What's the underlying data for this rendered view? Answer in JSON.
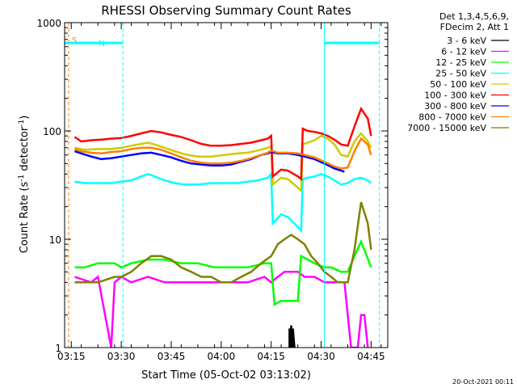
{
  "chart_data": {
    "type": "line",
    "title": "RHESSI Observing Summary Count Rates",
    "xlabel": "Start Time (05-Oct-02 03:13:02)",
    "ylabel_main": "Count Rate (s",
    "ylabel_sup1": "-1",
    "ylabel_mid": " detector",
    "ylabel_sup2": "-1",
    "ylabel_end": ")",
    "x_range_min": [
      0,
      97
    ],
    "y_range": [
      1,
      1000
    ],
    "y_scale": "log",
    "x_ticks": [
      {
        "min": 2,
        "label": "03:15"
      },
      {
        "min": 17,
        "label": "03:30"
      },
      {
        "min": 32,
        "label": "03:45"
      },
      {
        "min": 47,
        "label": "04:00"
      },
      {
        "min": 62,
        "label": "04:15"
      },
      {
        "min": 77,
        "label": "04:30"
      },
      {
        "min": 92,
        "label": "04:45"
      }
    ],
    "y_ticks": [
      {
        "value": 1,
        "label": "1"
      },
      {
        "value": 10,
        "label": "10"
      },
      {
        "value": 100,
        "label": "100"
      },
      {
        "value": 1000,
        "label": "1000"
      }
    ],
    "legend": {
      "header": [
        "Det 1,3,4,5,6,9,",
        "FDecim 2, Att 1"
      ],
      "position": "right"
    },
    "series": [
      {
        "name": "3 - 6 keV",
        "color": "#000000",
        "points": [
          [
            67.5,
            1
          ],
          [
            67.5,
            1.5
          ],
          [
            68,
            1
          ],
          [
            68,
            1.6
          ],
          [
            68.5,
            1
          ],
          [
            68.5,
            1.5
          ],
          [
            69,
            1
          ]
        ]
      },
      {
        "name": "6 - 12 keV",
        "color": "#ff00ff",
        "points": [
          [
            3,
            4.5
          ],
          [
            8,
            4
          ],
          [
            10,
            4.5
          ],
          [
            14,
            1
          ],
          [
            15,
            4
          ],
          [
            17,
            4.5
          ],
          [
            20,
            4
          ],
          [
            25,
            4.5
          ],
          [
            30,
            4
          ],
          [
            35,
            4
          ],
          [
            40,
            4
          ],
          [
            45,
            4
          ],
          [
            50,
            4
          ],
          [
            55,
            4
          ],
          [
            60,
            4.5
          ],
          [
            62,
            4
          ],
          [
            64,
            4.5
          ],
          [
            66,
            5
          ],
          [
            68,
            5
          ],
          [
            70,
            5
          ],
          [
            72,
            4.5
          ],
          [
            75,
            4.5
          ],
          [
            78,
            4
          ],
          [
            80,
            4
          ],
          [
            82,
            4
          ],
          [
            84,
            4
          ],
          [
            86,
            1
          ],
          [
            88,
            1
          ],
          [
            89,
            2
          ],
          [
            90,
            2
          ],
          [
            91,
            1
          ]
        ]
      },
      {
        "name": "12 - 25 keV",
        "color": "#00ff00",
        "points": [
          [
            3,
            5.5
          ],
          [
            6,
            5.5
          ],
          [
            10,
            6
          ],
          [
            15,
            6
          ],
          [
            17,
            5.5
          ],
          [
            20,
            6
          ],
          [
            25,
            6.5
          ],
          [
            30,
            6.5
          ],
          [
            35,
            6
          ],
          [
            40,
            6
          ],
          [
            45,
            5.5
          ],
          [
            50,
            5.5
          ],
          [
            55,
            5.5
          ],
          [
            60,
            6
          ],
          [
            62,
            6
          ],
          [
            63,
            2.5
          ],
          [
            65,
            2.7
          ],
          [
            68,
            2.7
          ],
          [
            70,
            2.7
          ],
          [
            71,
            7
          ],
          [
            73,
            6.5
          ],
          [
            75,
            6
          ],
          [
            78,
            5.5
          ],
          [
            80,
            5.5
          ],
          [
            83,
            5
          ],
          [
            85,
            5
          ],
          [
            87,
            7
          ],
          [
            89,
            9.5
          ],
          [
            90,
            8
          ],
          [
            92,
            5.5
          ]
        ]
      },
      {
        "name": "25 - 50 keV",
        "color": "#00ffff",
        "points": [
          [
            3,
            34
          ],
          [
            6,
            33
          ],
          [
            10,
            33
          ],
          [
            14,
            33
          ],
          [
            17,
            34
          ],
          [
            20,
            35
          ],
          [
            23,
            38
          ],
          [
            25,
            40
          ],
          [
            27,
            38
          ],
          [
            30,
            35
          ],
          [
            33,
            33
          ],
          [
            36,
            32
          ],
          [
            40,
            32
          ],
          [
            44,
            33
          ],
          [
            48,
            33
          ],
          [
            52,
            33
          ],
          [
            55,
            34
          ],
          [
            58,
            35
          ],
          [
            61,
            37
          ],
          [
            62,
            40
          ],
          [
            62.5,
            14
          ],
          [
            65,
            17
          ],
          [
            67,
            16
          ],
          [
            70,
            13
          ],
          [
            71,
            12
          ],
          [
            71.5,
            36
          ],
          [
            73,
            37
          ],
          [
            75,
            38
          ],
          [
            77,
            40
          ],
          [
            79,
            38
          ],
          [
            81,
            35
          ],
          [
            83,
            32
          ],
          [
            85,
            33
          ],
          [
            87,
            36
          ],
          [
            89,
            37
          ],
          [
            91,
            35
          ],
          [
            92,
            33
          ]
        ]
      },
      {
        "name": "50 - 100 keV",
        "color": "#cccc00",
        "points": [
          [
            3,
            70
          ],
          [
            6,
            67
          ],
          [
            10,
            68
          ],
          [
            14,
            68
          ],
          [
            17,
            70
          ],
          [
            20,
            73
          ],
          [
            23,
            76
          ],
          [
            25,
            78
          ],
          [
            27,
            75
          ],
          [
            30,
            70
          ],
          [
            33,
            65
          ],
          [
            36,
            61
          ],
          [
            40,
            58
          ],
          [
            44,
            58
          ],
          [
            48,
            60
          ],
          [
            52,
            62
          ],
          [
            55,
            63
          ],
          [
            58,
            66
          ],
          [
            61,
            70
          ],
          [
            62,
            72
          ],
          [
            62.5,
            32
          ],
          [
            65,
            37
          ],
          [
            67,
            36
          ],
          [
            70,
            30
          ],
          [
            71,
            28
          ],
          [
            71.5,
            75
          ],
          [
            73,
            78
          ],
          [
            75,
            82
          ],
          [
            77,
            90
          ],
          [
            79,
            85
          ],
          [
            81,
            75
          ],
          [
            83,
            60
          ],
          [
            85,
            58
          ],
          [
            87,
            80
          ],
          [
            89,
            95
          ],
          [
            91,
            80
          ],
          [
            92,
            70
          ]
        ]
      },
      {
        "name": "100 - 300 keV",
        "color": "#ff0000",
        "points": [
          [
            3,
            88
          ],
          [
            5,
            80
          ],
          [
            8,
            82
          ],
          [
            11,
            83
          ],
          [
            14,
            85
          ],
          [
            17,
            86
          ],
          [
            20,
            90
          ],
          [
            23,
            95
          ],
          [
            26,
            100
          ],
          [
            29,
            97
          ],
          [
            32,
            92
          ],
          [
            35,
            88
          ],
          [
            38,
            82
          ],
          [
            41,
            76
          ],
          [
            44,
            73
          ],
          [
            47,
            73
          ],
          [
            50,
            74
          ],
          [
            53,
            76
          ],
          [
            56,
            78
          ],
          [
            59,
            82
          ],
          [
            61,
            85
          ],
          [
            62,
            90
          ],
          [
            62.5,
            38
          ],
          [
            65,
            44
          ],
          [
            67,
            43
          ],
          [
            70,
            38
          ],
          [
            71,
            36
          ],
          [
            71.5,
            105
          ],
          [
            73,
            100
          ],
          [
            75,
            98
          ],
          [
            77,
            95
          ],
          [
            79,
            90
          ],
          [
            81,
            83
          ],
          [
            83,
            75
          ],
          [
            85,
            73
          ],
          [
            87,
            110
          ],
          [
            89,
            160
          ],
          [
            91,
            130
          ],
          [
            92,
            90
          ]
        ]
      },
      {
        "name": "300 - 800 keV",
        "color": "#0000ff",
        "points": [
          [
            3,
            65
          ],
          [
            5,
            62
          ],
          [
            8,
            58
          ],
          [
            11,
            55
          ],
          [
            14,
            56
          ],
          [
            17,
            58
          ],
          [
            20,
            60
          ],
          [
            23,
            62
          ],
          [
            26,
            63
          ],
          [
            29,
            60
          ],
          [
            32,
            57
          ],
          [
            35,
            53
          ],
          [
            38,
            50
          ],
          [
            41,
            49
          ],
          [
            44,
            48
          ],
          [
            47,
            48
          ],
          [
            50,
            49
          ],
          [
            53,
            52
          ],
          [
            56,
            55
          ],
          [
            59,
            60
          ],
          [
            61,
            62
          ],
          [
            62,
            64
          ],
          [
            64,
            62
          ],
          [
            67,
            62
          ],
          [
            70,
            60
          ],
          [
            72,
            58
          ],
          [
            75,
            55
          ],
          [
            78,
            50
          ],
          [
            81,
            45
          ],
          [
            83,
            43
          ],
          [
            84,
            42
          ]
        ]
      },
      {
        "name": "800 - 7000 keV",
        "color": "#ff8000",
        "points": [
          [
            3,
            68
          ],
          [
            5,
            65
          ],
          [
            8,
            63
          ],
          [
            11,
            62
          ],
          [
            14,
            64
          ],
          [
            17,
            65
          ],
          [
            20,
            68
          ],
          [
            23,
            70
          ],
          [
            26,
            70
          ],
          [
            29,
            67
          ],
          [
            32,
            62
          ],
          [
            35,
            57
          ],
          [
            38,
            53
          ],
          [
            41,
            51
          ],
          [
            44,
            50
          ],
          [
            47,
            50
          ],
          [
            50,
            51
          ],
          [
            53,
            53
          ],
          [
            56,
            56
          ],
          [
            59,
            60
          ],
          [
            61,
            63
          ],
          [
            62,
            66
          ],
          [
            64,
            63
          ],
          [
            67,
            63
          ],
          [
            70,
            62
          ],
          [
            72,
            60
          ],
          [
            75,
            57
          ],
          [
            78,
            52
          ],
          [
            81,
            47
          ],
          [
            83,
            45
          ],
          [
            85,
            46
          ],
          [
            87,
            65
          ],
          [
            89,
            85
          ],
          [
            91,
            75
          ],
          [
            92,
            60
          ]
        ]
      },
      {
        "name": "7000 - 15000 keV",
        "color": "#808000",
        "points": [
          [
            3,
            4
          ],
          [
            6,
            4
          ],
          [
            10,
            4
          ],
          [
            15,
            4.5
          ],
          [
            17,
            4.5
          ],
          [
            20,
            5
          ],
          [
            23,
            6
          ],
          [
            26,
            7
          ],
          [
            29,
            7
          ],
          [
            32,
            6.5
          ],
          [
            35,
            5.5
          ],
          [
            38,
            5
          ],
          [
            41,
            4.5
          ],
          [
            44,
            4.5
          ],
          [
            47,
            4
          ],
          [
            50,
            4
          ],
          [
            53,
            4.5
          ],
          [
            56,
            5
          ],
          [
            59,
            6
          ],
          [
            62,
            7
          ],
          [
            64,
            9
          ],
          [
            66,
            10
          ],
          [
            68,
            11
          ],
          [
            70,
            10
          ],
          [
            72,
            9
          ],
          [
            74,
            7
          ],
          [
            76,
            6
          ],
          [
            78,
            5
          ],
          [
            80,
            4.5
          ],
          [
            82,
            4
          ],
          [
            84,
            4
          ],
          [
            85,
            4
          ],
          [
            87,
            8
          ],
          [
            89,
            22
          ],
          [
            91,
            14
          ],
          [
            92,
            8
          ]
        ]
      }
    ],
    "vlines": [
      {
        "min": 0,
        "color": "#00ffff",
        "dash": false
      },
      {
        "min": 1.2,
        "color": "#ff8000",
        "dash": true
      },
      {
        "min": 17.5,
        "color": "#00ffff",
        "dash": true
      },
      {
        "min": 78,
        "color": "#00ffff",
        "dash": false
      },
      {
        "min": 94.5,
        "color": "#00ffff",
        "dash": true
      }
    ],
    "flags": [
      {
        "label": "S",
        "color": "#ff8000",
        "x1": 1.2,
        "x2": 1.2,
        "y": 700
      },
      {
        "label": "N",
        "color": "#00ffff",
        "x1": 0,
        "x2": 17.5,
        "y": 650
      },
      {
        "label": "",
        "color": "#00ffff",
        "x1": 78,
        "x2": 94.5,
        "y": 650
      }
    ]
  },
  "footer": {
    "timestamp": "20-Oct-2021 00:11"
  }
}
